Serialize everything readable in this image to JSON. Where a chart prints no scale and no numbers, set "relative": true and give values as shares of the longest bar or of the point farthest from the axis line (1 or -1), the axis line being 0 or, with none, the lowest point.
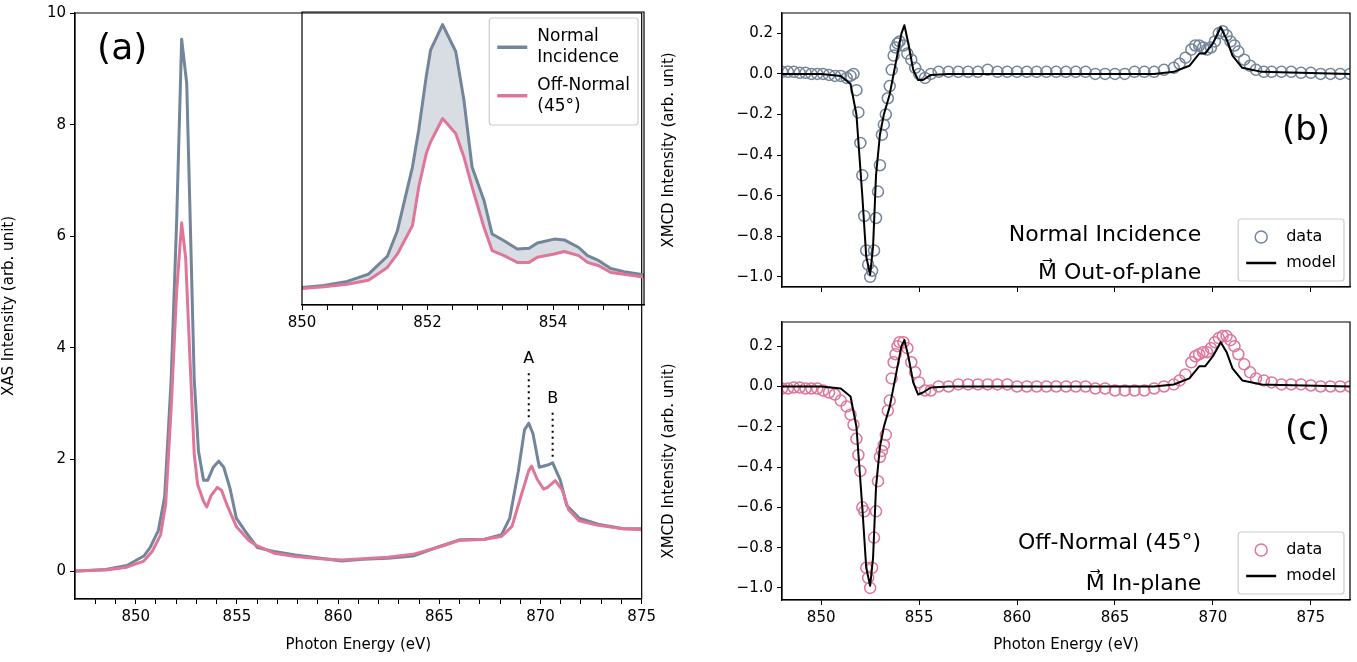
{
  "chart_data": [
    {
      "type": "line",
      "xlabel": "Photon Energy (eV)",
      "ylabel": "XAS Intensity (arb. unit)",
      "xlim": [
        847,
        875
      ],
      "ylim": [
        -0.5,
        10
      ],
      "xticks": [
        {
          "value": 848,
          "label": null
        },
        {
          "value": 849,
          "label": null
        },
        850,
        {
          "value": 851,
          "label": null
        },
        {
          "value": 852,
          "label": null
        },
        {
          "value": 853,
          "label": null
        },
        {
          "value": 854,
          "label": null
        },
        855,
        {
          "value": 856,
          "label": null
        },
        {
          "value": 857,
          "label": null
        },
        {
          "value": 858,
          "label": null
        },
        {
          "value": 859,
          "label": null
        },
        860,
        {
          "value": 861,
          "label": null
        },
        {
          "value": 862,
          "label": null
        },
        {
          "value": 863,
          "label": null
        },
        {
          "value": 864,
          "label": null
        },
        865,
        {
          "value": 866,
          "label": null
        },
        {
          "value": 867,
          "label": null
        },
        {
          "value": 868,
          "label": null
        },
        {
          "value": 869,
          "label": null
        },
        870,
        {
          "value": 871,
          "label": null
        },
        {
          "value": 872,
          "label": null
        },
        {
          "value": 873,
          "label": null
        },
        {
          "value": 874,
          "label": null
        },
        875
      ],
      "yticks": [
        0,
        2,
        4,
        6,
        8,
        10
      ],
      "annotations": [
        "(a)",
        {
          "text": "A",
          "x": 869.42,
          "y": 2.65
        },
        {
          "text": "B",
          "x": 870.6,
          "y": 1.94
        }
      ],
      "series": [
        {
          "color": "#73859a",
          "x": [
            847.07,
            848.52,
            849.56,
            850.4,
            850.71,
            851.12,
            851.43,
            851.75,
            852.02,
            852.27,
            852.52,
            852.68,
            852.89,
            853.1,
            853.35,
            853.56,
            853.83,
            854.1,
            854.35,
            854.66,
            854.97,
            855.38,
            856.01,
            856.84,
            857.88,
            859.13,
            860.17,
            861.21,
            862.45,
            863.7,
            865.16,
            865.99,
            867.24,
            868.07,
            868.48,
            868.9,
            869.21,
            869.42,
            869.63,
            869.94,
            870.35,
            870.6,
            870.98,
            871.29,
            871.91,
            872.85,
            874.1,
            875
          ],
          "values": [
            0,
            0.03,
            0.1,
            0.27,
            0.42,
            0.73,
            1.33,
            3.42,
            6.24,
            9.53,
            8.74,
            6.47,
            3.44,
            2.15,
            1.63,
            1.63,
            1.86,
            1.97,
            1.86,
            1.48,
            0.95,
            0.73,
            0.42,
            0.35,
            0.29,
            0.23,
            0.18,
            0.21,
            0.23,
            0.27,
            0.46,
            0.56,
            0.57,
            0.65,
            0.95,
            1.78,
            2.53,
            2.65,
            2.46,
            1.86,
            1.9,
            1.94,
            1.63,
            1.18,
            0.95,
            0.84,
            0.76,
            0.76
          ]
        },
        {
          "color": "#e0759a",
          "x": [
            847.07,
            848.52,
            849.56,
            850.4,
            850.81,
            851.23,
            851.48,
            851.75,
            852.02,
            852.27,
            852.47,
            852.68,
            852.89,
            853.06,
            853.35,
            853.51,
            853.72,
            854.03,
            854.24,
            854.55,
            854.97,
            855.59,
            856.01,
            856.84,
            857.88,
            859.13,
            860.17,
            861.21,
            862.45,
            863.7,
            865.16,
            865.99,
            867.24,
            868.07,
            868.59,
            869.0,
            869.42,
            869.56,
            869.83,
            870.15,
            870.35,
            870.73,
            871.08,
            871.39,
            871.91,
            872.85,
            874.1,
            875
          ],
          "values": [
            0,
            0.02,
            0.07,
            0.18,
            0.35,
            0.65,
            1.2,
            2.9,
            5.0,
            6.24,
            5.6,
            3.8,
            2.1,
            1.55,
            1.25,
            1.15,
            1.35,
            1.5,
            1.45,
            1.15,
            0.8,
            0.55,
            0.45,
            0.32,
            0.26,
            0.22,
            0.2,
            0.22,
            0.25,
            0.3,
            0.45,
            0.55,
            0.57,
            0.62,
            0.8,
            1.3,
            1.8,
            1.88,
            1.65,
            1.47,
            1.5,
            1.62,
            1.45,
            1.1,
            0.9,
            0.82,
            0.76,
            0.74
          ]
        }
      ]
    },
    {
      "type": "line",
      "relative": true,
      "xlim": [
        850,
        855.45
      ],
      "tick_labels": "x",
      "legend": "top right",
      "xticks": [
        850,
        {
          "value": 850.4,
          "label": null
        },
        {
          "value": 850.8,
          "label": null
        },
        {
          "value": 851.2,
          "label": null
        },
        {
          "value": 851.6,
          "label": null
        },
        852,
        {
          "value": 852.4,
          "label": null
        },
        {
          "value": 852.8,
          "label": null
        },
        {
          "value": 853.2,
          "label": null
        },
        {
          "value": 853.6,
          "label": null
        },
        854,
        {
          "value": 854.4,
          "label": null
        },
        {
          "value": 854.8,
          "label": null
        },
        {
          "value": 855.2,
          "label": null
        }
      ],
      "x": [
        850,
        850.35,
        850.72,
        851.06,
        851.36,
        851.52,
        851.76,
        851.86,
        851.98,
        852.05,
        852.24,
        852.45,
        852.58,
        852.71,
        852.9,
        853.03,
        853.22,
        853.43,
        853.62,
        853.75,
        854.02,
        854.18,
        854.41,
        854.55,
        854.73,
        854.92,
        855.13,
        855.44
      ],
      "series": [
        {
          "name": "Normal Incidence",
          "color": "#73859a",
          "values": [
            0.062,
            0.07,
            0.084,
            0.11,
            0.174,
            0.265,
            0.492,
            0.624,
            0.815,
            0.91,
            1,
            0.904,
            0.731,
            0.492,
            0.373,
            0.253,
            0.229,
            0.2,
            0.202,
            0.221,
            0.235,
            0.232,
            0.205,
            0.176,
            0.158,
            0.13,
            0.119,
            0.108
          ],
          "lower": [
            0.059,
            0.065,
            0.074,
            0.088,
            0.134,
            0.182,
            0.283,
            0.421,
            0.54,
            0.582,
            0.665,
            0.612,
            0.528,
            0.421,
            0.277,
            0.194,
            0.176,
            0.152,
            0.152,
            0.17,
            0.182,
            0.191,
            0.176,
            0.152,
            0.14,
            0.116,
            0.11,
            0.1
          ],
          "upper": [
            0.062,
            0.07,
            0.084,
            0.11,
            0.174,
            0.265,
            0.492,
            0.624,
            0.815,
            0.91,
            1,
            0.904,
            0.731,
            0.492,
            0.373,
            0.253,
            0.229,
            0.2,
            0.202,
            0.221,
            0.235,
            0.232,
            0.205,
            0.176,
            0.158,
            0.13,
            0.119,
            0.108
          ]
        },
        {
          "name": "Off-Normal (45°)",
          "color": "#e0759a",
          "values": [
            0.059,
            0.065,
            0.074,
            0.088,
            0.134,
            0.182,
            0.283,
            0.421,
            0.54,
            0.582,
            0.665,
            0.612,
            0.528,
            0.421,
            0.277,
            0.194,
            0.176,
            0.152,
            0.152,
            0.17,
            0.182,
            0.191,
            0.176,
            0.152,
            0.14,
            0.116,
            0.11,
            0.1
          ]
        }
      ]
    },
    {
      "type": "scatter",
      "ylabel": "XMCD Intensity (arb. unit)",
      "xlim": [
        848,
        877
      ],
      "ylim": [
        -1.05,
        0.3
      ],
      "tick_labels": "y",
      "legend": "bottom right",
      "xticks": [
        850,
        855,
        860,
        865,
        870,
        875
      ],
      "yticks": [
        {
          "value": 0.2,
          "label": "0.2"
        },
        {
          "value": 0,
          "label": "0.0"
        },
        {
          "value": -0.2,
          "label": "−0.2"
        },
        {
          "value": -0.4,
          "label": "−0.4"
        },
        {
          "value": -0.6,
          "label": "−0.6"
        },
        {
          "value": -0.8,
          "label": "−0.8"
        },
        {
          "value": -1,
          "label": "−1.0"
        }
      ],
      "annotations": [
        "(b)",
        "Normal Incidence",
        "M⃗ Out-of-plane"
      ],
      "series": [
        {
          "name": "data",
          "color": "#73859a",
          "marker": "circle",
          "x": [
            848,
            848.3,
            848.6,
            848.9,
            849.2,
            849.5,
            849.8,
            850.1,
            850.4,
            850.7,
            851.0,
            851.3,
            851.5,
            851.65,
            851.8,
            851.9,
            852.0,
            852.1,
            852.2,
            852.3,
            852.4,
            852.5,
            852.6,
            852.7,
            852.8,
            852.9,
            853.0,
            853.1,
            853.2,
            853.3,
            853.4,
            853.5,
            853.6,
            853.7,
            853.8,
            853.9,
            854.0,
            854.2,
            854.4,
            854.6,
            854.8,
            855.0,
            855.3,
            855.6,
            856,
            856.5,
            857,
            857.5,
            858,
            858.5,
            859,
            859.5,
            860,
            860.5,
            861,
            861.5,
            862,
            862.5,
            863,
            863.5,
            864,
            864.5,
            865,
            865.5,
            866,
            866.5,
            867,
            867.5,
            868,
            868.3,
            868.6,
            868.9,
            869.1,
            869.3,
            869.5,
            869.7,
            869.9,
            870.1,
            870.3,
            870.5,
            870.7,
            870.9,
            871.1,
            871.3,
            871.6,
            871.9,
            872.2,
            872.6,
            873,
            873.5,
            874,
            874.5,
            875,
            875.5,
            876,
            876.5,
            877
          ],
          "values": [
            0.01,
            0.01,
            0.01,
            0.005,
            0.005,
            0,
            0,
            0,
            -0.005,
            -0.01,
            -0.01,
            -0.02,
            -0.01,
            0,
            -0.08,
            -0.19,
            -0.34,
            -0.5,
            -0.7,
            -0.87,
            -0.94,
            -1.0,
            -0.97,
            -0.87,
            -0.71,
            -0.58,
            -0.45,
            -0.3,
            -0.25,
            -0.2,
            -0.12,
            -0.06,
            0.02,
            0.09,
            0.13,
            0.15,
            0.16,
            0.14,
            0.1,
            0.07,
            0.03,
            0,
            -0.02,
            0,
            0.01,
            0.01,
            0.01,
            0.01,
            0.01,
            0.02,
            0.01,
            0.01,
            0.01,
            0.01,
            0.01,
            0.01,
            0.01,
            0.01,
            0.01,
            0.01,
            0,
            0,
            0,
            0,
            0.01,
            0.01,
            0.01,
            0.02,
            0.03,
            0.05,
            0.08,
            0.12,
            0.14,
            0.14,
            0.13,
            0.12,
            0.13,
            0.16,
            0.2,
            0.21,
            0.19,
            0.16,
            0.14,
            0.11,
            0.07,
            0.04,
            0.02,
            0.01,
            0.01,
            0.01,
            0.01,
            0.005,
            0.005,
            0,
            0,
            0,
            0
          ]
        },
        {
          "name": "model",
          "type": "line",
          "color": "#000000",
          "marker": "none",
          "x": [
            848,
            850,
            851,
            851.5,
            851.8,
            852.1,
            852.3,
            852.5,
            852.65,
            852.8,
            853.0,
            853.2,
            853.5,
            853.8,
            854.1,
            854.25,
            854.45,
            854.7,
            854.95,
            855.2,
            855.6,
            856.5,
            867,
            868,
            868.8,
            869.3,
            869.6,
            870.0,
            870.4,
            870.7,
            871.0,
            871.5,
            872.5,
            877
          ],
          "values": [
            0,
            0,
            -0.01,
            -0.05,
            -0.2,
            -0.6,
            -0.9,
            -0.99,
            -0.85,
            -0.5,
            -0.3,
            -0.2,
            -0.1,
            0.05,
            0.2,
            0.24,
            0.15,
            0.02,
            -0.03,
            -0.03,
            -0.005,
            0,
            0,
            0.01,
            0.04,
            0.1,
            0.1,
            0.15,
            0.23,
            0.17,
            0.09,
            0.03,
            0.01,
            0
          ]
        }
      ]
    },
    {
      "type": "scatter",
      "xlabel": "Photon Energy (eV)",
      "ylabel": "XMCD Intensity (arb. unit)",
      "xlim": [
        848,
        877
      ],
      "ylim": [
        -1.06,
        0.32
      ],
      "legend": "bottom right",
      "xticks": [
        850,
        855,
        860,
        865,
        870,
        875
      ],
      "yticks": [
        {
          "value": 0.2,
          "label": "0.2"
        },
        {
          "value": 0,
          "label": "0.0"
        },
        {
          "value": -0.2,
          "label": "−0.2"
        },
        {
          "value": -0.4,
          "label": "−0.4"
        },
        {
          "value": -0.6,
          "label": "−0.6"
        },
        {
          "value": -0.8,
          "label": "−0.8"
        },
        {
          "value": -1,
          "label": "−1.0"
        }
      ],
      "annotations": [
        "(c)",
        "Off-Normal (45°)",
        "M⃗ In-plane"
      ],
      "series": [
        {
          "name": "data",
          "color": "#e0759a",
          "marker": "circle",
          "x": [
            848,
            848.3,
            848.6,
            848.9,
            849.2,
            849.5,
            849.8,
            850.1,
            850.4,
            850.7,
            851.0,
            851.3,
            851.5,
            851.65,
            851.8,
            851.9,
            852.0,
            852.1,
            852.2,
            852.3,
            852.4,
            852.5,
            852.6,
            852.7,
            852.8,
            852.9,
            853.0,
            853.1,
            853.2,
            853.3,
            853.4,
            853.5,
            853.6,
            853.7,
            853.8,
            853.9,
            854.0,
            854.2,
            854.4,
            854.6,
            854.8,
            855.0,
            855.3,
            855.6,
            856,
            856.5,
            857,
            857.5,
            858,
            858.5,
            859,
            859.5,
            860,
            860.5,
            861,
            861.5,
            862,
            862.5,
            863,
            863.5,
            864,
            864.5,
            865,
            865.5,
            866,
            866.5,
            867,
            867.5,
            868,
            868.3,
            868.6,
            868.9,
            869.1,
            869.3,
            869.5,
            869.7,
            869.9,
            870.1,
            870.3,
            870.5,
            870.7,
            870.9,
            871.1,
            871.3,
            871.6,
            871.9,
            872.2,
            872.6,
            873,
            873.5,
            874,
            874.5,
            875,
            875.5,
            876,
            876.5,
            877
          ],
          "values": [
            -0.01,
            -0.01,
            -0.005,
            -0.005,
            -0.01,
            -0.01,
            -0.01,
            -0.02,
            -0.03,
            -0.04,
            -0.07,
            -0.1,
            -0.14,
            -0.19,
            -0.26,
            -0.34,
            -0.42,
            -0.6,
            -0.62,
            -0.9,
            -0.95,
            -1.0,
            -0.9,
            -0.75,
            -0.62,
            -0.47,
            -0.35,
            -0.32,
            -0.29,
            -0.24,
            -0.12,
            -0.07,
            0.04,
            0.12,
            0.16,
            0.2,
            0.22,
            0.22,
            0.19,
            0.12,
            0.07,
            0.02,
            -0.02,
            -0.02,
            0,
            0,
            0.01,
            0.01,
            0.01,
            0.01,
            0.01,
            0.01,
            0,
            0,
            0,
            0,
            0,
            0,
            0,
            0,
            -0.01,
            -0.01,
            -0.02,
            -0.02,
            -0.02,
            -0.02,
            -0.01,
            0,
            0.01,
            0.03,
            0.06,
            0.12,
            0.15,
            0.16,
            0.17,
            0.17,
            0.19,
            0.22,
            0.24,
            0.25,
            0.25,
            0.23,
            0.2,
            0.16,
            0.11,
            0.07,
            0.04,
            0.03,
            0.02,
            0.01,
            0.01,
            0.01,
            0.005,
            0,
            0,
            0,
            0
          ]
        },
        {
          "name": "model",
          "type": "line",
          "color": "#000000",
          "marker": "none",
          "x": [
            848,
            850,
            851,
            851.5,
            851.8,
            852.1,
            852.3,
            852.5,
            852.65,
            852.8,
            853.0,
            853.2,
            853.5,
            853.8,
            854.1,
            854.25,
            854.45,
            854.7,
            854.95,
            855.2,
            855.6,
            856.5,
            867,
            868,
            868.8,
            869.3,
            869.6,
            870.0,
            870.4,
            870.7,
            871.0,
            871.5,
            872.5,
            877
          ],
          "values": [
            0,
            0,
            -0.01,
            -0.05,
            -0.2,
            -0.6,
            -0.9,
            -0.99,
            -0.85,
            -0.5,
            -0.3,
            -0.2,
            -0.1,
            0.05,
            0.2,
            0.23,
            0.15,
            0.02,
            -0.04,
            -0.03,
            -0.005,
            0,
            0,
            0.01,
            0.04,
            0.1,
            0.1,
            0.15,
            0.22,
            0.17,
            0.09,
            0.03,
            0.01,
            0
          ]
        }
      ]
    }
  ]
}
